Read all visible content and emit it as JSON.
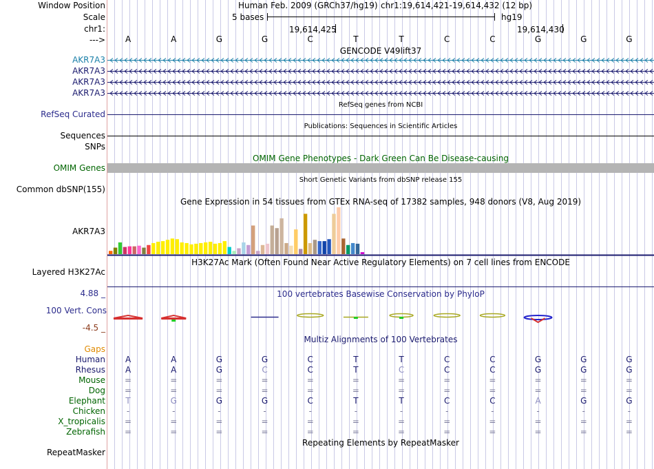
{
  "header": {
    "window_position_label": "Window Position",
    "scale_label": "Scale",
    "chrom_label": "chr1:",
    "arrow_label": "--->",
    "assembly": "Human Feb. 2009 (GRCh37/hg19)",
    "position": "chr1:19,614,421-19,614,432 (12 bp)",
    "scale_text": "5 bases",
    "db": "hg19",
    "pos_tick_1": "19,614,425",
    "pos_tick_2": "19,614,430"
  },
  "bases": [
    "A",
    "A",
    "G",
    "G",
    "C",
    "T",
    "T",
    "C",
    "C",
    "G",
    "G",
    "G"
  ],
  "tracks": {
    "gencode": {
      "title": "GENCODE V49lift37",
      "labels": [
        "AKR7A3",
        "AKR7A3",
        "AKR7A3",
        "AKR7A3"
      ]
    },
    "refseq": {
      "title": "RefSeq genes from NCBI",
      "label": "RefSeq Curated"
    },
    "publications": {
      "title": "Publications: Sequences in Scientific Articles",
      "label": "Sequences"
    },
    "snps_label": "SNPs",
    "omim": {
      "title": "OMIM Gene Phenotypes - Dark Green Can Be Disease-causing",
      "label": "OMIM Genes"
    },
    "dbsnp": {
      "title": "Short Genetic Variants from dbSNP release 155",
      "label": "Common dbSNP(155)"
    },
    "gtex": {
      "title": "Gene Expression in 54 tissues from GTEx RNA-seq of 17382 samples, 948 donors (V8, Aug 2019)",
      "label": "AKR7A3"
    },
    "h3k27ac": {
      "title": "H3K27Ac Mark (Often Found Near Active Regulatory Elements) on 7 cell lines from ENCODE",
      "label": "Layered H3K27Ac"
    },
    "phylop": {
      "title": "100 vertebrates Basewise Conservation by PhyloP",
      "label": "100 Vert. Cons",
      "max": "4.88 _",
      "min": "-4.5 _"
    },
    "multiz": {
      "title": "Multiz Alignments of 100 Vertebrates",
      "gaps_label": "Gaps"
    },
    "repeatmasker": {
      "title": "Repeating Elements by RepeatMasker",
      "label": "RepeatMasker"
    }
  },
  "alignment": [
    {
      "species": "Human",
      "bases": [
        "A",
        "A",
        "G",
        "G",
        "C",
        "T",
        "T",
        "C",
        "C",
        "G",
        "G",
        "G"
      ]
    },
    {
      "species": "Rhesus",
      "bases": [
        "A",
        "A",
        "G",
        "C",
        "C",
        "T",
        "C",
        "C",
        "C",
        "G",
        "G",
        "G"
      ]
    },
    {
      "species": "Mouse",
      "bases": [
        "=",
        "=",
        "=",
        "=",
        "=",
        "=",
        "=",
        "=",
        "=",
        "=",
        "=",
        "="
      ]
    },
    {
      "species": "Dog",
      "bases": [
        "=",
        "=",
        "=",
        "=",
        "=",
        "=",
        "=",
        "=",
        "=",
        "=",
        "=",
        "="
      ]
    },
    {
      "species": "Elephant",
      "bases": [
        "T",
        "G",
        "G",
        "G",
        "C",
        "T",
        "T",
        "C",
        "C",
        "A",
        "G",
        "G"
      ]
    },
    {
      "species": "Chicken",
      "bases": [
        "-",
        "-",
        "-",
        "-",
        "-",
        "-",
        "-",
        "-",
        "-",
        "-",
        "-",
        "-"
      ]
    },
    {
      "species": "X_tropicalis",
      "bases": [
        "=",
        "=",
        "=",
        "=",
        "=",
        "=",
        "=",
        "=",
        "=",
        "=",
        "=",
        "="
      ]
    },
    {
      "species": "Zebrafish",
      "bases": [
        "=",
        "=",
        "=",
        "=",
        "=",
        "=",
        "=",
        "=",
        "=",
        "=",
        "=",
        "="
      ]
    }
  ],
  "gtex_values": [
    5,
    10,
    18,
    11,
    12,
    12,
    13,
    10,
    14,
    17,
    19,
    20,
    22,
    24,
    23,
    18,
    17,
    15,
    16,
    17,
    18,
    19,
    16,
    17,
    20,
    11,
    5,
    9,
    18,
    14,
    44,
    5,
    14,
    16,
    44,
    40,
    55,
    17,
    13,
    38,
    8,
    62,
    17,
    22,
    20,
    20,
    23,
    62,
    72,
    24,
    14,
    17,
    16,
    3
  ],
  "gtex_colors": [
    "#ff6600",
    "#808000",
    "#33cc33",
    "#cc3366",
    "#ff3399",
    "#cc6666",
    "#ff66cc",
    "#808040",
    "#ee4444",
    "#ffee00",
    "#ffee00",
    "#ffee00",
    "#ffee00",
    "#ffee00",
    "#ffee00",
    "#ffee00",
    "#ffee00",
    "#ffee00",
    "#ffee00",
    "#ffee00",
    "#ffee00",
    "#ffee00",
    "#ffee00",
    "#ffee00",
    "#ffee00",
    "#00cccc",
    "#aaeebb",
    "#c8a2c8",
    "#a9d4e8",
    "#c39bd3",
    "#d4a07c",
    "#c8a2c8",
    "#ddb897",
    "#eec5cc",
    "#c4ae98",
    "#b8a190",
    "#cdb59f",
    "#ccaa88",
    "#f5deb3",
    "#ffcc66",
    "#aa88aa",
    "#cc9900",
    "#ddbb88",
    "#aa9988",
    "#3366cc",
    "#1144aa",
    "#2255bb",
    "#eecc99",
    "#ffccaa",
    "#aa6633",
    "#009966",
    "#4488cc",
    "#336699",
    "#cc00cc"
  ],
  "colors": {
    "gencode": "#005b80",
    "label_blue": "#2b2b8c",
    "omim": "#006400",
    "orange": "#e08a00",
    "phylop_min": "#8b3a1a"
  }
}
